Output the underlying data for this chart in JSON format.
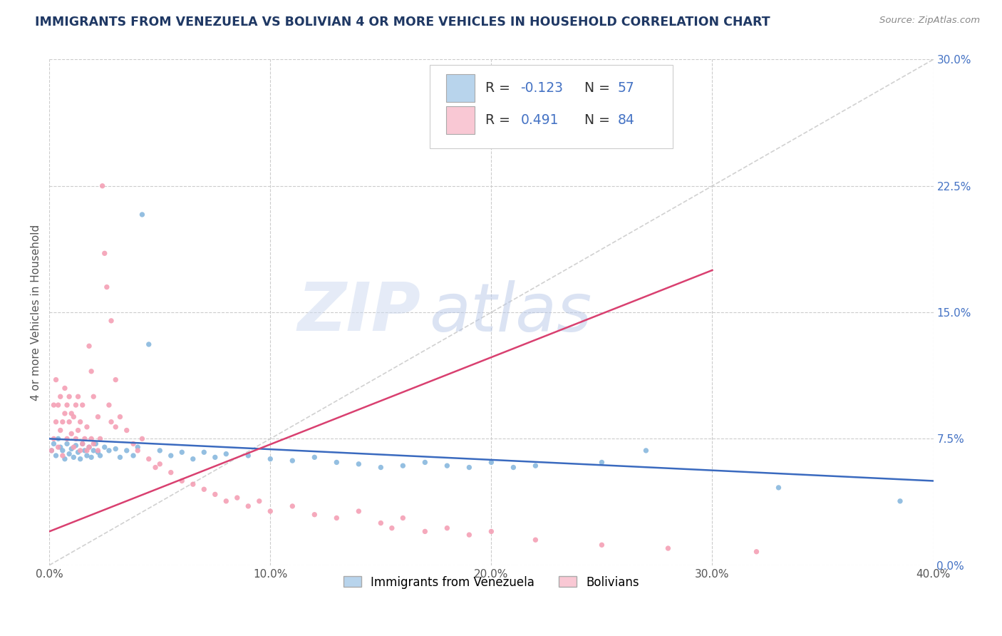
{
  "title": "IMMIGRANTS FROM VENEZUELA VS BOLIVIAN 4 OR MORE VEHICLES IN HOUSEHOLD CORRELATION CHART",
  "source": "Source: ZipAtlas.com",
  "ylabel_left": "4 or more Vehicles in Household",
  "xmin": 0.0,
  "xmax": 0.4,
  "ymin": 0.0,
  "ymax": 0.3,
  "xticks": [
    0.0,
    0.1,
    0.2,
    0.3,
    0.4
  ],
  "xtick_labels": [
    "0.0%",
    "10.0%",
    "20.0%",
    "30.0%",
    "40.0%"
  ],
  "yticks": [
    0.0,
    0.075,
    0.15,
    0.225,
    0.3
  ],
  "ytick_labels_right": [
    "0.0%",
    "7.5%",
    "15.0%",
    "22.5%",
    "30.0%"
  ],
  "legend_labels": [
    "Immigrants from Venezuela",
    "Bolivians"
  ],
  "blue_color": "#89b8de",
  "pink_color": "#f4a0b5",
  "blue_fill": "#b8d4ec",
  "pink_fill": "#f9c8d4",
  "trend_blue": "#3a6abf",
  "trend_pink": "#d94070",
  "watermark_zip": "ZIP",
  "watermark_atlas": "atlas",
  "title_color": "#1f3864",
  "blue_scatter": [
    [
      0.001,
      0.068
    ],
    [
      0.002,
      0.072
    ],
    [
      0.003,
      0.065
    ],
    [
      0.004,
      0.075
    ],
    [
      0.005,
      0.07
    ],
    [
      0.006,
      0.068
    ],
    [
      0.007,
      0.063
    ],
    [
      0.008,
      0.072
    ],
    [
      0.009,
      0.066
    ],
    [
      0.01,
      0.069
    ],
    [
      0.011,
      0.064
    ],
    [
      0.012,
      0.071
    ],
    [
      0.013,
      0.067
    ],
    [
      0.014,
      0.063
    ],
    [
      0.015,
      0.072
    ],
    [
      0.016,
      0.068
    ],
    [
      0.017,
      0.065
    ],
    [
      0.018,
      0.07
    ],
    [
      0.019,
      0.064
    ],
    [
      0.02,
      0.068
    ],
    [
      0.021,
      0.072
    ],
    [
      0.022,
      0.067
    ],
    [
      0.023,
      0.065
    ],
    [
      0.025,
      0.07
    ],
    [
      0.027,
      0.068
    ],
    [
      0.03,
      0.069
    ],
    [
      0.032,
      0.064
    ],
    [
      0.035,
      0.068
    ],
    [
      0.038,
      0.065
    ],
    [
      0.04,
      0.07
    ],
    [
      0.042,
      0.208
    ],
    [
      0.045,
      0.131
    ],
    [
      0.05,
      0.068
    ],
    [
      0.055,
      0.065
    ],
    [
      0.06,
      0.067
    ],
    [
      0.065,
      0.063
    ],
    [
      0.07,
      0.067
    ],
    [
      0.075,
      0.064
    ],
    [
      0.08,
      0.066
    ],
    [
      0.09,
      0.065
    ],
    [
      0.1,
      0.063
    ],
    [
      0.11,
      0.062
    ],
    [
      0.12,
      0.064
    ],
    [
      0.13,
      0.061
    ],
    [
      0.14,
      0.06
    ],
    [
      0.15,
      0.058
    ],
    [
      0.16,
      0.059
    ],
    [
      0.17,
      0.061
    ],
    [
      0.18,
      0.059
    ],
    [
      0.19,
      0.058
    ],
    [
      0.2,
      0.061
    ],
    [
      0.21,
      0.058
    ],
    [
      0.22,
      0.059
    ],
    [
      0.25,
      0.061
    ],
    [
      0.27,
      0.068
    ],
    [
      0.33,
      0.046
    ],
    [
      0.385,
      0.038
    ]
  ],
  "pink_scatter": [
    [
      0.001,
      0.068
    ],
    [
      0.002,
      0.075
    ],
    [
      0.002,
      0.095
    ],
    [
      0.003,
      0.085
    ],
    [
      0.003,
      0.11
    ],
    [
      0.004,
      0.07
    ],
    [
      0.004,
      0.095
    ],
    [
      0.005,
      0.08
    ],
    [
      0.005,
      0.1
    ],
    [
      0.006,
      0.065
    ],
    [
      0.006,
      0.085
    ],
    [
      0.007,
      0.09
    ],
    [
      0.007,
      0.105
    ],
    [
      0.008,
      0.075
    ],
    [
      0.008,
      0.095
    ],
    [
      0.009,
      0.085
    ],
    [
      0.009,
      0.1
    ],
    [
      0.01,
      0.078
    ],
    [
      0.01,
      0.09
    ],
    [
      0.011,
      0.07
    ],
    [
      0.011,
      0.088
    ],
    [
      0.012,
      0.075
    ],
    [
      0.012,
      0.095
    ],
    [
      0.013,
      0.08
    ],
    [
      0.013,
      0.1
    ],
    [
      0.014,
      0.068
    ],
    [
      0.014,
      0.085
    ],
    [
      0.015,
      0.072
    ],
    [
      0.015,
      0.095
    ],
    [
      0.016,
      0.075
    ],
    [
      0.017,
      0.068
    ],
    [
      0.017,
      0.082
    ],
    [
      0.018,
      0.07
    ],
    [
      0.018,
      0.13
    ],
    [
      0.019,
      0.075
    ],
    [
      0.019,
      0.115
    ],
    [
      0.02,
      0.072
    ],
    [
      0.02,
      0.1
    ],
    [
      0.022,
      0.068
    ],
    [
      0.022,
      0.088
    ],
    [
      0.023,
      0.075
    ],
    [
      0.024,
      0.225
    ],
    [
      0.025,
      0.185
    ],
    [
      0.026,
      0.165
    ],
    [
      0.027,
      0.095
    ],
    [
      0.028,
      0.085
    ],
    [
      0.028,
      0.145
    ],
    [
      0.03,
      0.082
    ],
    [
      0.03,
      0.11
    ],
    [
      0.032,
      0.088
    ],
    [
      0.035,
      0.08
    ],
    [
      0.038,
      0.072
    ],
    [
      0.04,
      0.068
    ],
    [
      0.042,
      0.075
    ],
    [
      0.045,
      0.063
    ],
    [
      0.048,
      0.058
    ],
    [
      0.05,
      0.06
    ],
    [
      0.055,
      0.055
    ],
    [
      0.06,
      0.05
    ],
    [
      0.065,
      0.048
    ],
    [
      0.07,
      0.045
    ],
    [
      0.075,
      0.042
    ],
    [
      0.08,
      0.038
    ],
    [
      0.085,
      0.04
    ],
    [
      0.09,
      0.035
    ],
    [
      0.095,
      0.038
    ],
    [
      0.1,
      0.032
    ],
    [
      0.11,
      0.035
    ],
    [
      0.12,
      0.03
    ],
    [
      0.13,
      0.028
    ],
    [
      0.14,
      0.032
    ],
    [
      0.15,
      0.025
    ],
    [
      0.155,
      0.022
    ],
    [
      0.16,
      0.028
    ],
    [
      0.17,
      0.02
    ],
    [
      0.18,
      0.022
    ],
    [
      0.19,
      0.018
    ],
    [
      0.2,
      0.02
    ],
    [
      0.22,
      0.015
    ],
    [
      0.25,
      0.012
    ],
    [
      0.28,
      0.01
    ],
    [
      0.32,
      0.008
    ]
  ]
}
